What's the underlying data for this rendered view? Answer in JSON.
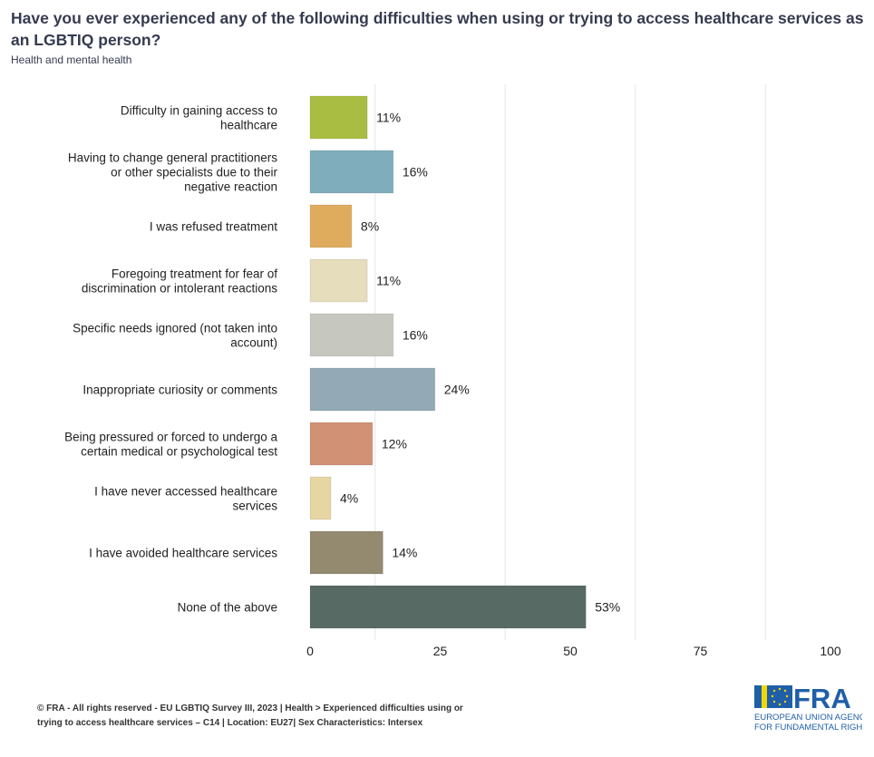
{
  "header": {
    "title": "Have you ever experienced any of the following difficulties when using or trying to access healthcare services as an LGBTIQ person?",
    "subtitle": "Health and mental health"
  },
  "chart_data": {
    "type": "bar",
    "orientation": "horizontal",
    "categories": [
      [
        "Difficulty in gaining access to",
        "healthcare"
      ],
      [
        "Having to change general practitioners",
        "or other specialists due to their",
        "negative reaction"
      ],
      [
        "I was refused treatment"
      ],
      [
        "Foregoing treatment for fear of",
        "discrimination or intolerant reactions"
      ],
      [
        "Specific needs ignored (not taken into",
        "account)"
      ],
      [
        "Inappropriate curiosity or comments"
      ],
      [
        "Being pressured or forced to undergo a",
        "certain medical or psychological test"
      ],
      [
        "I have never accessed healthcare",
        "services"
      ],
      [
        "I have avoided healthcare services"
      ],
      [
        "None of the above"
      ]
    ],
    "values": [
      11,
      16,
      8,
      11,
      16,
      24,
      12,
      4,
      14,
      53
    ],
    "data_labels": [
      "11%",
      "16%",
      "8%",
      "11%",
      "16%",
      "24%",
      "12%",
      "4%",
      "14%",
      "53%"
    ],
    "colors": [
      "#a9bd42",
      "#7fadbb",
      "#dfac5e",
      "#e6ddbc",
      "#c6c8bf",
      "#93a9b5",
      "#d09174",
      "#e5d6a2",
      "#948a70",
      "#586a64"
    ],
    "xlim": [
      0,
      100
    ],
    "x_ticks": [
      "0",
      "25",
      "50",
      "75",
      "100"
    ],
    "x_tick_values": [
      0,
      25,
      50,
      75,
      100
    ],
    "grid": true,
    "legend": "none"
  },
  "footer": {
    "line1": "© FRA - All rights reserved - EU LGBTIQ Survey III, 2023 | Health > Experienced difficulties using or",
    "line2": "trying to access healthcare services – C14 | Location: EU27| Sex Characteristics: Intersex"
  },
  "logo": {
    "text": "FRA",
    "line1": "EUROPEAN UNION AGENCY",
    "line2": "FOR FUNDAMENTAL RIGHTS",
    "color": "#1f5fa9"
  }
}
